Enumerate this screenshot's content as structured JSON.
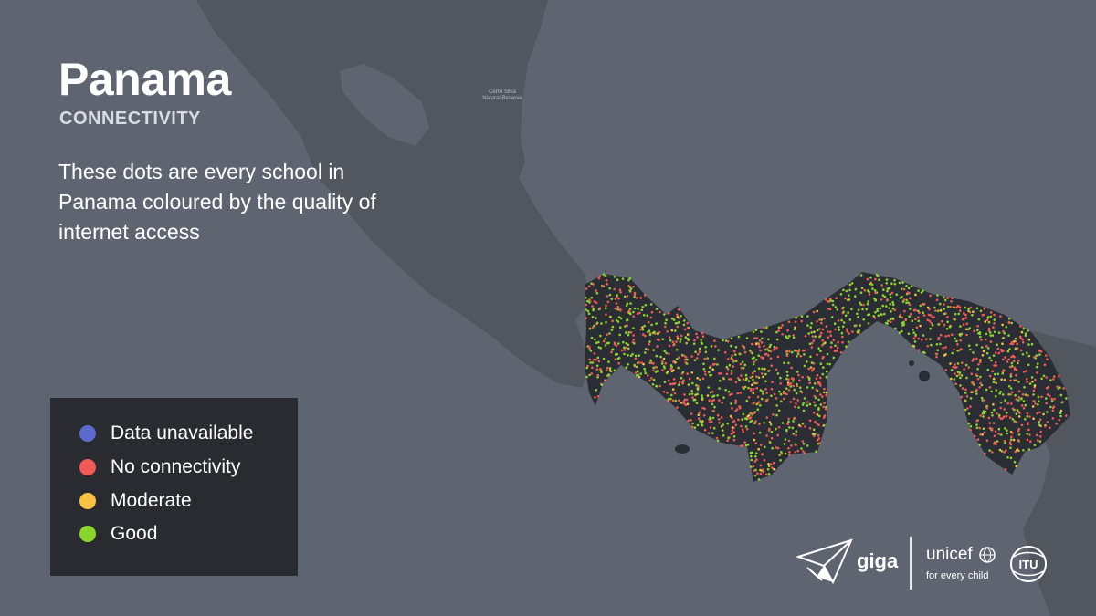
{
  "header": {
    "title": "Panama",
    "subtitle": "CONNECTIVITY",
    "description": "These dots are every school in Panama coloured by the quality of internet access"
  },
  "map": {
    "place_label": [
      "Cerro Silva",
      "Natural Reserve"
    ],
    "colors": {
      "background": "#5f6570",
      "land": "#52565f",
      "panama": "#2b2d35"
    }
  },
  "legend": {
    "items": [
      {
        "label": "Data unavailable",
        "color": "#5b6bd0"
      },
      {
        "label": "No connectivity",
        "color": "#f25a56"
      },
      {
        "label": "Moderate",
        "color": "#f7c340"
      },
      {
        "label": "Good",
        "color": "#8cd52b"
      }
    ]
  },
  "logos": {
    "giga": "giga",
    "unicef": "unicef",
    "unicef_tagline": "for every child",
    "itu": "ITU"
  }
}
